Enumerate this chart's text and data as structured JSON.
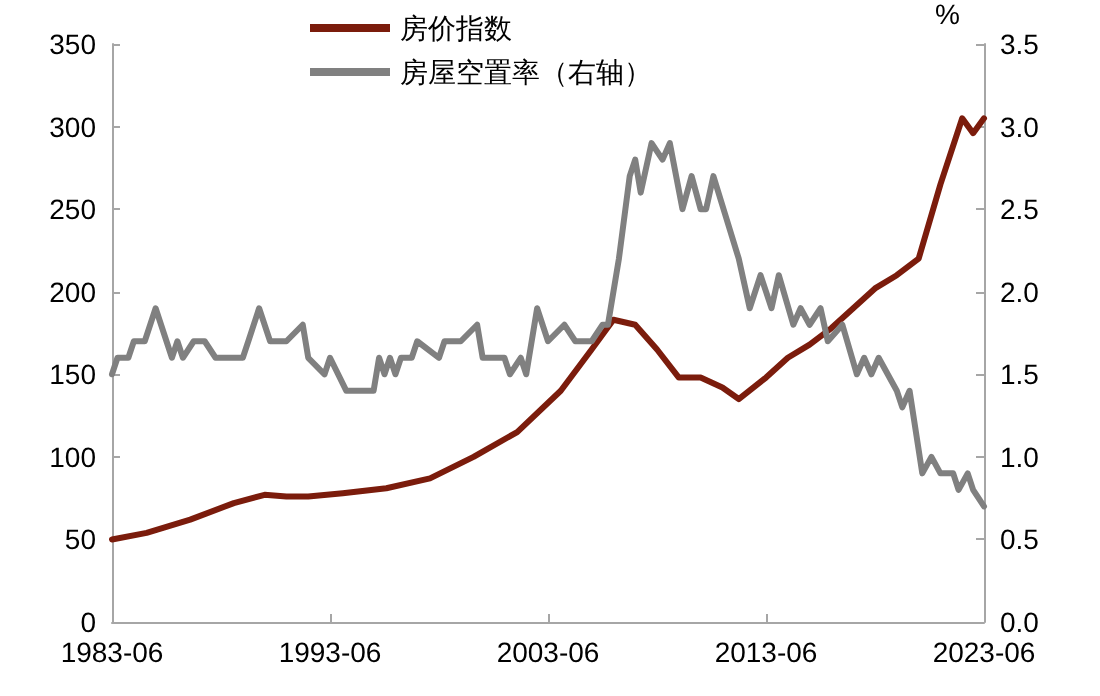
{
  "chart_data": {
    "type": "line",
    "y2label": "%",
    "xlim": [
      "1983-06",
      "2023-06"
    ],
    "xticks": [
      "1983-06",
      "1993-06",
      "2003-06",
      "2013-06",
      "2023-06"
    ],
    "ylim": [
      0,
      350
    ],
    "yticks": [
      0,
      50,
      100,
      150,
      200,
      250,
      300,
      350
    ],
    "y2lim": [
      0,
      3.5
    ],
    "y2ticks": [
      {
        "value": 0,
        "label": "0.0"
      },
      {
        "value": 0.5,
        "label": "0.5"
      },
      {
        "value": 1,
        "label": "1.0"
      },
      {
        "value": 1.5,
        "label": "1.5"
      },
      {
        "value": 2,
        "label": "2.0"
      },
      {
        "value": 2.5,
        "label": "2.5"
      },
      {
        "value": 3,
        "label": "3.0"
      },
      {
        "value": 3.5,
        "label": "3.5"
      }
    ],
    "grid": false,
    "legend": "top",
    "marker": "none",
    "line_style": "solid",
    "series": [
      {
        "name": "房价指数",
        "color": "#7b1c0c",
        "x": [
          "1983-06",
          "1985-01",
          "1987-01",
          "1989-01",
          "1990-06",
          "1991-06",
          "1992-06",
          "1994-01",
          "1996-01",
          "1998-01",
          "2000-01",
          "2002-01",
          "2004-01",
          "2005-06",
          "2006-06",
          "2007-06",
          "2008-06",
          "2009-06",
          "2010-06",
          "2011-06",
          "2012-03",
          "2013-06",
          "2014-06",
          "2015-06",
          "2016-06",
          "2017-06",
          "2018-06",
          "2019-06",
          "2020-06",
          "2021-06",
          "2022-06",
          "2022-12",
          "2023-06"
        ],
        "values": [
          50,
          54,
          62,
          72,
          77,
          76,
          76,
          78,
          81,
          87,
          100,
          115,
          140,
          165,
          183,
          180,
          165,
          148,
          148,
          142,
          135,
          148,
          160,
          168,
          178,
          190,
          202,
          210,
          220,
          265,
          305,
          296,
          305
        ]
      },
      {
        "name": "房屋空置率（右轴）",
        "color": "#808080",
        "axis": "y2",
        "x": [
          "1983-06",
          "1983-09",
          "1984-03",
          "1984-06",
          "1984-12",
          "1985-06",
          "1986-03",
          "1986-06",
          "1986-09",
          "1987-03",
          "1987-09",
          "1988-03",
          "1989-06",
          "1989-09",
          "1990-03",
          "1990-09",
          "1991-06",
          "1992-03",
          "1992-06",
          "1993-03",
          "1993-06",
          "1994-03",
          "1995-06",
          "1995-09",
          "1995-12",
          "1996-03",
          "1996-06",
          "1996-09",
          "1997-03",
          "1997-06",
          "1998-06",
          "1998-09",
          "1999-06",
          "2000-03",
          "2000-06",
          "2001-06",
          "2001-09",
          "2002-03",
          "2002-06",
          "2002-12",
          "2003-06",
          "2004-03",
          "2004-09",
          "2005-06",
          "2005-12",
          "2006-03",
          "2006-09",
          "2007-03",
          "2007-06",
          "2007-09",
          "2008-03",
          "2008-09",
          "2009-01",
          "2009-08",
          "2010-01",
          "2010-06",
          "2010-09",
          "2011-01",
          "2012-03",
          "2012-09",
          "2013-03",
          "2013-09",
          "2014-01",
          "2014-09",
          "2015-01",
          "2015-06",
          "2015-12",
          "2016-04",
          "2016-12",
          "2017-08",
          "2017-12",
          "2018-04",
          "2018-08",
          "2019-06",
          "2019-09",
          "2020-01",
          "2020-08",
          "2021-01",
          "2021-06",
          "2022-01",
          "2022-04",
          "2022-09",
          "2022-12",
          "2023-06"
        ],
        "values": [
          1.5,
          1.6,
          1.6,
          1.7,
          1.7,
          1.9,
          1.6,
          1.7,
          1.6,
          1.7,
          1.7,
          1.6,
          1.6,
          1.7,
          1.9,
          1.7,
          1.7,
          1.8,
          1.6,
          1.5,
          1.6,
          1.4,
          1.4,
          1.6,
          1.5,
          1.6,
          1.5,
          1.6,
          1.6,
          1.7,
          1.6,
          1.7,
          1.7,
          1.8,
          1.6,
          1.6,
          1.5,
          1.6,
          1.5,
          1.9,
          1.7,
          1.8,
          1.7,
          1.7,
          1.8,
          1.8,
          2.2,
          2.7,
          2.8,
          2.6,
          2.9,
          2.8,
          2.9,
          2.5,
          2.7,
          2.5,
          2.5,
          2.7,
          2.2,
          1.9,
          2.1,
          1.9,
          2.1,
          1.8,
          1.9,
          1.8,
          1.9,
          1.7,
          1.8,
          1.5,
          1.6,
          1.5,
          1.6,
          1.4,
          1.3,
          1.4,
          0.9,
          1.0,
          0.9,
          0.9,
          0.8,
          0.9,
          0.8,
          0.7
        ]
      }
    ]
  }
}
